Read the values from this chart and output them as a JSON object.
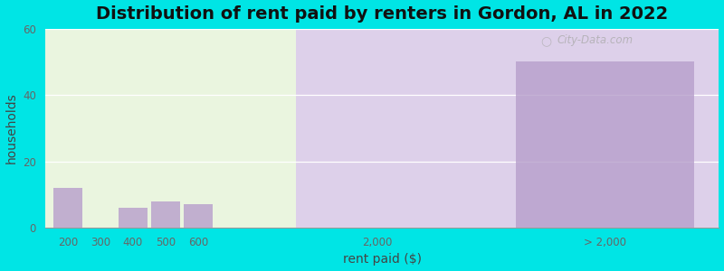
{
  "title": "Distribution of rent paid by renters in Gordon, AL in 2022",
  "xlabel": "rent paid ($)",
  "ylabel": "households",
  "background_color": "#00e5e5",
  "plot_bg_color_left": "#eaf5df",
  "plot_bg_color_right": "#ddd0ea",
  "bar_color": "#b8a0cc",
  "watermark": "City-Data.com",
  "ylim": [
    0,
    60
  ],
  "yticks": [
    0,
    20,
    40,
    60
  ],
  "values": [
    12,
    0,
    6,
    8,
    7,
    0,
    50
  ],
  "x_positions": [
    0.5,
    1.5,
    2.5,
    3.5,
    4.5,
    10.0,
    17.0
  ],
  "bar_widths": [
    0.9,
    0.9,
    0.9,
    0.9,
    0.9,
    0.9,
    5.5
  ],
  "x_tick_positions": [
    0.5,
    1.5,
    2.5,
    3.5,
    4.5,
    10.0,
    17.0
  ],
  "x_tick_labels": [
    "200",
    "300",
    "400",
    "500",
    "600",
    "2,000",
    "> 2,000"
  ],
  "xlim": [
    -0.2,
    20.5
  ],
  "divider_x": 7.5,
  "title_fontsize": 14,
  "axis_label_fontsize": 10,
  "tick_fontsize": 8.5
}
